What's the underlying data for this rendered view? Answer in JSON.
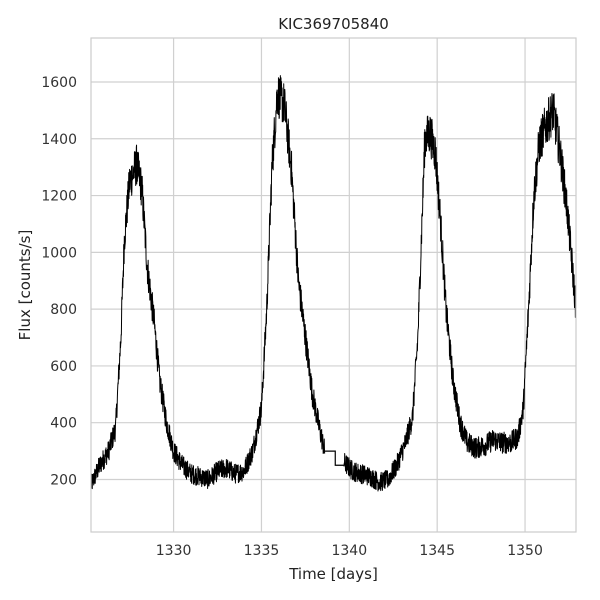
{
  "chart_data": {
    "type": "line",
    "title": "KIC369705840",
    "xlabel": "Time [days]",
    "ylabel": "Flux [counts/s]",
    "xlim": [
      1325.3,
      1352.9
    ],
    "ylim": [
      15,
      1755
    ],
    "xticks": [
      1330,
      1335,
      1340,
      1345,
      1350
    ],
    "yticks": [
      200,
      400,
      600,
      800,
      1000,
      1200,
      1400,
      1600
    ],
    "grid": true,
    "legend": "none",
    "series": [
      {
        "color": "#000000",
        "envelope": [
          [
            1325.3,
            180
          ],
          [
            1325.8,
            250
          ],
          [
            1326.3,
            300
          ],
          [
            1326.7,
            380
          ],
          [
            1327.0,
            700
          ],
          [
            1327.2,
            1050
          ],
          [
            1327.5,
            1250
          ],
          [
            1327.9,
            1310
          ],
          [
            1328.2,
            1220
          ],
          [
            1328.5,
            950
          ],
          [
            1328.9,
            750
          ],
          [
            1329.2,
            550
          ],
          [
            1329.6,
            400
          ],
          [
            1330.0,
            300
          ],
          [
            1330.5,
            250
          ],
          [
            1331.0,
            220
          ],
          [
            1331.5,
            210
          ],
          [
            1332.0,
            200
          ],
          [
            1332.5,
            230
          ],
          [
            1333.0,
            240
          ],
          [
            1333.5,
            220
          ],
          [
            1334.0,
            230
          ],
          [
            1334.5,
            300
          ],
          [
            1335.0,
            450
          ],
          [
            1335.3,
            800
          ],
          [
            1335.6,
            1300
          ],
          [
            1335.9,
            1560
          ],
          [
            1336.3,
            1520
          ],
          [
            1336.7,
            1300
          ],
          [
            1337.1,
            900
          ],
          [
            1337.5,
            700
          ],
          [
            1337.9,
            500
          ],
          [
            1338.3,
            380
          ],
          [
            1338.6,
            300
          ]
        ],
        "envelope2": [
          [
            1339.7,
            260
          ],
          [
            1340.2,
            230
          ],
          [
            1340.7,
            220
          ],
          [
            1341.2,
            210
          ],
          [
            1341.7,
            190
          ],
          [
            1342.2,
            200
          ],
          [
            1342.7,
            250
          ],
          [
            1343.2,
            330
          ],
          [
            1343.6,
            420
          ],
          [
            1343.9,
            700
          ],
          [
            1344.1,
            1050
          ],
          [
            1344.3,
            1400
          ],
          [
            1344.6,
            1420
          ],
          [
            1344.9,
            1350
          ],
          [
            1345.2,
            1100
          ],
          [
            1345.5,
            800
          ],
          [
            1345.9,
            550
          ],
          [
            1346.3,
            400
          ],
          [
            1346.7,
            330
          ],
          [
            1347.2,
            310
          ],
          [
            1347.7,
            320
          ],
          [
            1348.2,
            340
          ],
          [
            1348.7,
            330
          ],
          [
            1349.2,
            330
          ],
          [
            1349.6,
            350
          ],
          [
            1349.9,
            450
          ],
          [
            1350.2,
            800
          ],
          [
            1350.5,
            1200
          ],
          [
            1350.8,
            1380
          ],
          [
            1351.2,
            1450
          ],
          [
            1351.6,
            1500
          ],
          [
            1352.0,
            1350
          ],
          [
            1352.4,
            1150
          ],
          [
            1352.9,
            800
          ]
        ],
        "gap": [
          [
            1338.6,
            300
          ],
          [
            1339.2,
            300
          ],
          [
            1339.2,
            250
          ],
          [
            1339.7,
            250
          ]
        ],
        "noise_amplitude": 55
      }
    ]
  }
}
